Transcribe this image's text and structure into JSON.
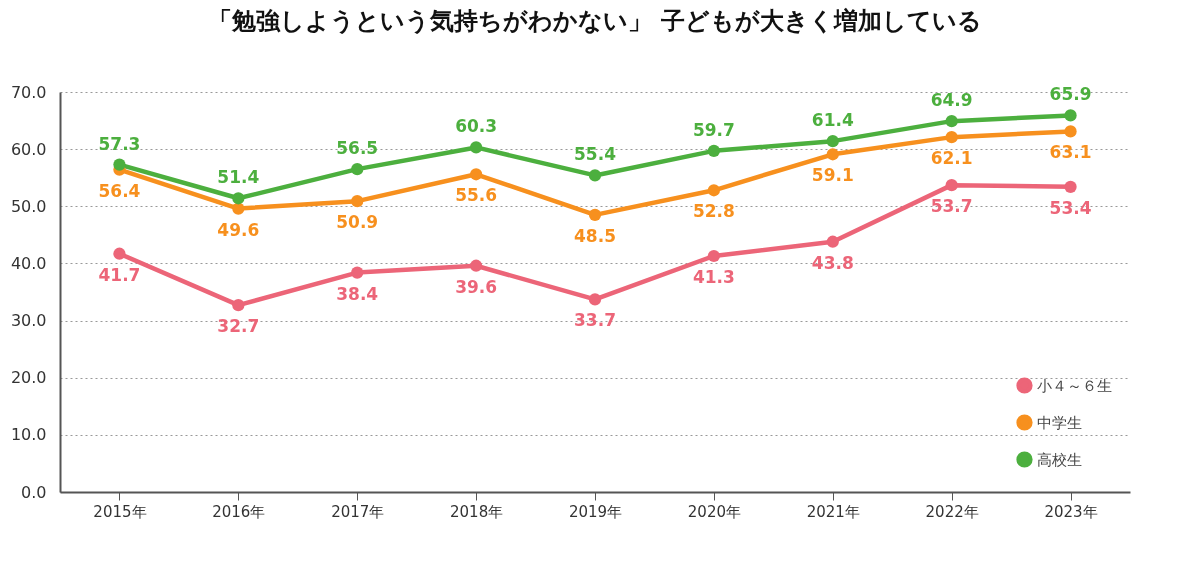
{
  "chart_data": {
    "type": "line",
    "title": "「勉強しようという気持ちがわかない」 子どもが大きく増加している",
    "categories": [
      "2015年",
      "2016年",
      "2017年",
      "2018年",
      "2019年",
      "2020年",
      "2021年",
      "2022年",
      "2023年"
    ],
    "series": [
      {
        "name": "小４～６生",
        "color": "#ec6578",
        "values": [
          41.7,
          32.7,
          38.4,
          39.6,
          33.7,
          41.3,
          43.8,
          53.7,
          53.4
        ]
      },
      {
        "name": "中学生",
        "color": "#f7901e",
        "values": [
          56.4,
          49.6,
          50.9,
          55.6,
          48.5,
          52.8,
          59.1,
          62.1,
          63.1
        ]
      },
      {
        "name": "高校生",
        "color": "#4caf3e",
        "values": [
          57.3,
          51.4,
          56.5,
          60.3,
          55.4,
          59.7,
          61.4,
          64.9,
          65.9
        ]
      }
    ],
    "ylim": [
      0,
      70
    ],
    "yticks": [
      {
        "value": 0,
        "label": "0.0"
      },
      {
        "value": 10,
        "label": "10.0"
      },
      {
        "value": 20,
        "label": "20.0"
      },
      {
        "value": 30,
        "label": "30.0"
      },
      {
        "value": 40,
        "label": "40.0"
      },
      {
        "value": 50,
        "label": "50.0"
      },
      {
        "value": 60,
        "label": "60.0"
      },
      {
        "value": 70,
        "label": "70.0"
      }
    ],
    "grid": "y",
    "legend": "bottom right",
    "marker": "circle",
    "line_style": "solid",
    "data_labels": true
  }
}
